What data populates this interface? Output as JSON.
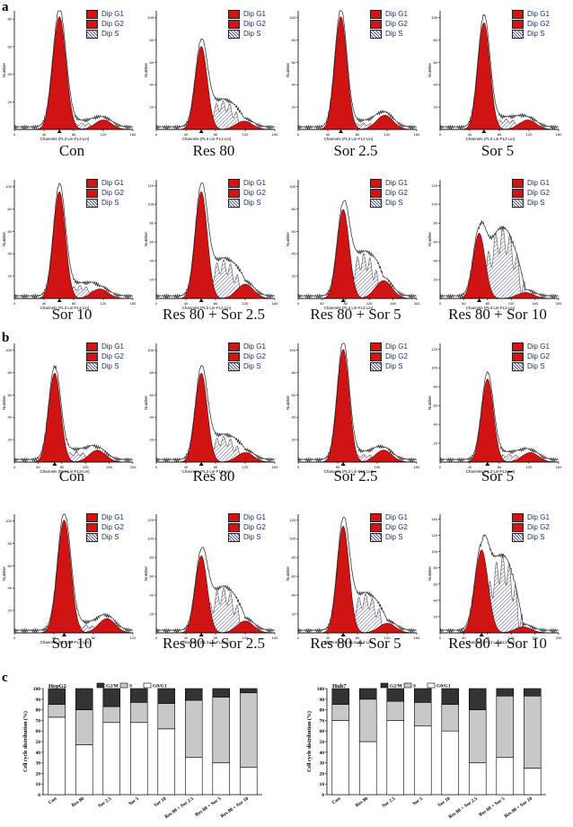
{
  "panels": {
    "a": "a",
    "b": "b",
    "c": "c"
  },
  "legend": {
    "g1": "Dip G1",
    "g2": "Dip G2",
    "s": "Dip S"
  },
  "axis": {
    "ylabel": "Number",
    "xlabel": "Channels (FL3 Lin-FL3 Lin)",
    "xlabel_alt": "Channels (FL3-Lin-FL3-Lin)"
  },
  "panel_a": [
    {
      "caption": "Con",
      "xmax": "160",
      "y_ticks": [
        "20",
        "40",
        "60",
        "80"
      ],
      "x_ticks": [
        "0",
        "40",
        "80",
        "120",
        "160"
      ],
      "g1": {
        "center": 0.38,
        "width": 0.055,
        "height": 0.95
      },
      "g2": {
        "center": 0.75,
        "width": 0.07,
        "height": 0.08
      },
      "s": 0.05
    },
    {
      "caption": "Res 80",
      "xmax": "160",
      "y_ticks": [
        "20",
        "40",
        "60",
        "80",
        "100"
      ],
      "x_ticks": [
        "0",
        "40",
        "80",
        "120",
        "160"
      ],
      "g1": {
        "center": 0.38,
        "width": 0.05,
        "height": 0.7
      },
      "g2": {
        "center": 0.74,
        "width": 0.07,
        "height": 0.07
      },
      "s": 0.22
    },
    {
      "caption": "Sor 2.5",
      "xmax": "160",
      "y_ticks": [
        "20",
        "40",
        "60",
        "80",
        "100"
      ],
      "x_ticks": [
        "0",
        "40",
        "80",
        "120",
        "160"
      ],
      "g1": {
        "center": 0.36,
        "width": 0.05,
        "height": 0.95
      },
      "g2": {
        "center": 0.73,
        "width": 0.07,
        "height": 0.12
      },
      "s": 0.05
    },
    {
      "caption": "Sor 5",
      "xmax": "160",
      "y_ticks": [
        "20",
        "40",
        "60",
        "80",
        "100"
      ],
      "x_ticks": [
        "0",
        "40",
        "80",
        "120",
        "160"
      ],
      "g1": {
        "center": 0.37,
        "width": 0.05,
        "height": 0.9
      },
      "g2": {
        "center": 0.74,
        "width": 0.07,
        "height": 0.08
      },
      "s": 0.08
    },
    {
      "caption": "Sor 10",
      "xmax": "160",
      "y_ticks": [
        "20",
        "40",
        "60",
        "80",
        "100"
      ],
      "x_ticks": [
        "0",
        "40",
        "80",
        "120",
        "160"
      ],
      "g1": {
        "center": 0.38,
        "width": 0.05,
        "height": 0.9
      },
      "g2": {
        "center": 0.72,
        "width": 0.07,
        "height": 0.08
      },
      "s": 0.1
    },
    {
      "caption": "Res 80 + Sor 2.5",
      "xmax": "160",
      "y_ticks": [
        "20",
        "40",
        "60",
        "80",
        "100",
        "120"
      ],
      "x_ticks": [
        "0",
        "40",
        "80",
        "120",
        "160"
      ],
      "g1": {
        "center": 0.38,
        "width": 0.05,
        "height": 0.9
      },
      "g2": {
        "center": 0.75,
        "width": 0.07,
        "height": 0.12
      },
      "s": 0.3
    },
    {
      "caption": "Res 80 + Sor 5",
      "xmax": "200",
      "y_ticks": [
        "20",
        "40",
        "60",
        "80",
        "100"
      ],
      "x_ticks": [
        "0",
        "40",
        "80",
        "120",
        "160",
        "200"
      ],
      "g1": {
        "center": 0.38,
        "width": 0.05,
        "height": 0.75
      },
      "g2": {
        "center": 0.72,
        "width": 0.07,
        "height": 0.15
      },
      "s": 0.35
    },
    {
      "caption": "Res 80 + Sor 10",
      "xmax": "200",
      "y_ticks": [
        "20",
        "40",
        "60",
        "80",
        "100",
        "120"
      ],
      "x_ticks": [
        "0",
        "40",
        "80",
        "120",
        "160",
        "200"
      ],
      "g1": {
        "center": 0.33,
        "width": 0.05,
        "height": 0.55
      },
      "g2": {
        "center": 0.72,
        "width": 0.07,
        "height": 0.05
      },
      "s": 0.55
    }
  ],
  "panel_b": [
    {
      "caption": "Con",
      "xmax": "200",
      "y_ticks": [
        "20",
        "40",
        "60",
        "80",
        "100"
      ],
      "x_ticks": [
        "0",
        "40",
        "80",
        "120",
        "160",
        "200"
      ],
      "g1": {
        "center": 0.34,
        "width": 0.05,
        "height": 0.75
      },
      "g2": {
        "center": 0.7,
        "width": 0.07,
        "height": 0.1
      },
      "s": 0.08
    },
    {
      "caption": "Res 80",
      "xmax": "160",
      "y_ticks": [
        "20",
        "40",
        "60",
        "80",
        "100"
      ],
      "x_ticks": [
        "0",
        "40",
        "80",
        "120",
        "160"
      ],
      "g1": {
        "center": 0.38,
        "width": 0.05,
        "height": 0.75
      },
      "g2": {
        "center": 0.75,
        "width": 0.07,
        "height": 0.08
      },
      "s": 0.2
    },
    {
      "caption": "Sor 2.5",
      "xmax": "150",
      "y_ticks": [
        "20",
        "40",
        "60",
        "80",
        "100"
      ],
      "x_ticks": [
        "0",
        "50",
        "100",
        "150"
      ],
      "g1": {
        "center": 0.38,
        "width": 0.05,
        "height": 0.95
      },
      "g2": {
        "center": 0.72,
        "width": 0.07,
        "height": 0.1
      },
      "s": 0.06
    },
    {
      "caption": "Sor 5",
      "xmax": "160",
      "y_ticks": [
        "20",
        "40",
        "60",
        "80",
        "100",
        "120"
      ],
      "x_ticks": [
        "0",
        "40",
        "80",
        "120",
        "160"
      ],
      "g1": {
        "center": 0.4,
        "width": 0.05,
        "height": 0.7
      },
      "g2": {
        "center": 0.76,
        "width": 0.07,
        "height": 0.08
      },
      "s": 0.06
    },
    {
      "caption": "Sor 10",
      "xmax": "120",
      "y_ticks": [
        "20",
        "40",
        "60",
        "80",
        "100"
      ],
      "x_ticks": [
        "0",
        "40",
        "80",
        "120"
      ],
      "g1": {
        "center": 0.42,
        "width": 0.055,
        "height": 0.95
      },
      "g2": {
        "center": 0.78,
        "width": 0.07,
        "height": 0.12
      },
      "s": 0.06
    },
    {
      "caption": "Res 80 + Sor 2.5",
      "xmax": "160",
      "y_ticks": [
        "20",
        "40",
        "60",
        "80",
        "100",
        "120"
      ],
      "x_ticks": [
        "0",
        "40",
        "80",
        "120",
        "160"
      ],
      "g1": {
        "center": 0.38,
        "width": 0.05,
        "height": 0.65
      },
      "g2": {
        "center": 0.75,
        "width": 0.07,
        "height": 0.1
      },
      "s": 0.35
    },
    {
      "caption": "Res 80 + Sor 5",
      "xmax": "160",
      "y_ticks": [
        "20",
        "40",
        "60",
        "80",
        "100",
        "120"
      ],
      "x_ticks": [
        "0",
        "40",
        "80",
        "120",
        "160"
      ],
      "g1": {
        "center": 0.38,
        "width": 0.05,
        "height": 0.9
      },
      "g2": {
        "center": 0.75,
        "width": 0.07,
        "height": 0.08
      },
      "s": 0.3
    },
    {
      "caption": "Res 80 + Sor 10",
      "xmax": "200",
      "y_ticks": [
        "20",
        "40",
        "60",
        "80",
        "100",
        "120",
        "140"
      ],
      "x_ticks": [
        "0",
        "40",
        "80",
        "120",
        "160",
        "200"
      ],
      "g1": {
        "center": 0.35,
        "width": 0.055,
        "height": 0.7
      },
      "g2": {
        "center": 0.7,
        "width": 0.07,
        "height": 0.05
      },
      "s": 0.6
    }
  ],
  "chart_data": [
    {
      "type": "bar",
      "stacked": true,
      "title": "HepG2",
      "ylabel": "Cell cycle distribution (%)",
      "ylim": [
        0,
        100
      ],
      "y_ticks": [
        "0",
        "10",
        "20",
        "30",
        "40",
        "50",
        "60",
        "70",
        "80",
        "90",
        "100"
      ],
      "categories": [
        "Con",
        "Res 80",
        "Sor 2.5",
        "Sor 5",
        "Sor 10",
        "Res 80 + Sor 2.5",
        "Res 80 + Sor 5",
        "Res 80 + Sor 10"
      ],
      "series": [
        {
          "name": "G0/G1",
          "color": "#ffffff",
          "values": [
            73,
            47,
            68,
            68,
            62,
            35,
            30,
            26
          ]
        },
        {
          "name": "S",
          "color": "#c8c8c8",
          "values": [
            12,
            33,
            15,
            19,
            24,
            54,
            62,
            70
          ]
        },
        {
          "name": "G2/M",
          "color": "#333333",
          "values": [
            15,
            20,
            17,
            13,
            14,
            11,
            8,
            4
          ]
        }
      ]
    },
    {
      "type": "bar",
      "stacked": true,
      "title": "Huh7",
      "ylabel": "Cell cycle distribution (%)",
      "ylim": [
        0,
        100
      ],
      "y_ticks": [
        "0",
        "10",
        "20",
        "30",
        "40",
        "50",
        "60",
        "70",
        "80",
        "90",
        "100"
      ],
      "categories": [
        "Con",
        "Res 80",
        "Sor 2.5",
        "Sor 5",
        "Sor 10",
        "Res 80 + Sor 2.5",
        "Res 80 + Sor 5",
        "Res 80 + Sor 10"
      ],
      "series": [
        {
          "name": "G0/G1",
          "color": "#ffffff",
          "values": [
            70,
            50,
            70,
            65,
            60,
            30,
            35,
            25
          ]
        },
        {
          "name": "S",
          "color": "#c8c8c8",
          "values": [
            15,
            40,
            18,
            22,
            25,
            50,
            58,
            68
          ]
        },
        {
          "name": "G2/M",
          "color": "#333333",
          "values": [
            15,
            10,
            12,
            13,
            15,
            20,
            7,
            7
          ]
        }
      ]
    }
  ]
}
